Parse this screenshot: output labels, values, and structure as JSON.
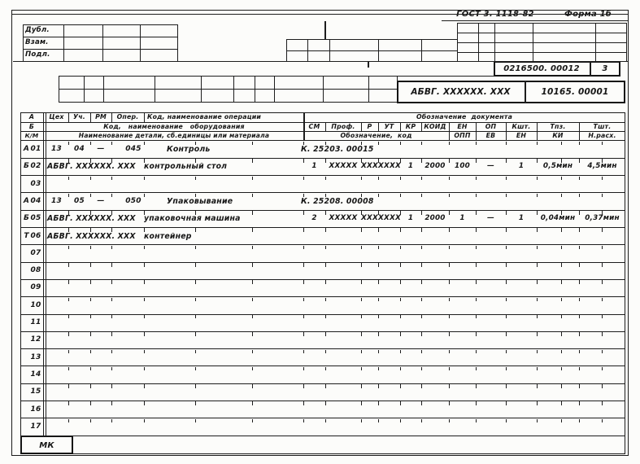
{
  "title": {
    "gost": "ГОСТ 3. 1118-82",
    "forma": "Форма 1б"
  },
  "stamp": {
    "left_rows": [
      "Дубл.",
      "Взам.",
      "Подл."
    ],
    "doc_number": "0216500. 00012",
    "sheet": "3",
    "designation": "АБВГ. XXXXXX. XXX",
    "doc_code": "10165. 00001"
  },
  "table_header": {
    "row_a_label": "А",
    "row_b_label": "Б",
    "row_km_label": "К/М",
    "a_cols": [
      "Цех",
      "Уч.",
      "РМ",
      "Опер.",
      "Код, наименование операции"
    ],
    "a_right": "Обозначение  документа",
    "b_left": "Код,   наименование   оборудования",
    "b_cols": [
      "СМ",
      "Проф.",
      "Р",
      "УТ",
      "КР",
      "КОИД",
      "ЕН",
      "ОП",
      "Кшт.",
      "Тпз.",
      "Тшт."
    ],
    "km_left": "Наименование детали, сб.единицы или материала",
    "km_designation": "Обозначение,  код",
    "km_cols": [
      "ОПП",
      "ЕВ",
      "ЕН",
      "КИ",
      "Н.расх."
    ]
  },
  "rows": [
    {
      "letter": "А",
      "num": "01",
      "op": {
        "ceh": "13",
        "uch": "04",
        "rm": "—",
        "oper": "045",
        "name": "Контроль"
      },
      "doc": "К. 25203. 00015"
    },
    {
      "letter": "Б",
      "num": "02",
      "text": "АБВГ. XXXXXX. XXX   контрольный стол",
      "values": [
        "1",
        "XXXXX",
        "XXX",
        "XXXX",
        "1",
        "2000",
        "100",
        "—",
        "1",
        "0,5мин",
        "4,5мин"
      ]
    },
    {
      "letter": "",
      "num": "03"
    },
    {
      "letter": "А",
      "num": "04",
      "op": {
        "ceh": "13",
        "uch": "05",
        "rm": "—",
        "oper": "050",
        "name": "Упаковывание"
      },
      "doc": "К. 25208. 00008"
    },
    {
      "letter": "Б",
      "num": "05",
      "text": "АБВГ. XXXXXX. XXX   упаковочная машина",
      "values": [
        "2",
        "XXXXX",
        "XXX",
        "XXXX",
        "1",
        "2000",
        "1",
        "—",
        "1",
        "0,04мин",
        "0,37мин"
      ]
    },
    {
      "letter": "Т",
      "num": "06",
      "text": "АБВГ. XXXXXX. XXX   контейнер"
    },
    {
      "letter": "",
      "num": "07"
    },
    {
      "letter": "",
      "num": "08"
    },
    {
      "letter": "",
      "num": "09"
    },
    {
      "letter": "",
      "num": "10"
    },
    {
      "letter": "",
      "num": "11"
    },
    {
      "letter": "",
      "num": "12"
    },
    {
      "letter": "",
      "num": "13"
    },
    {
      "letter": "",
      "num": "14"
    },
    {
      "letter": "",
      "num": "15"
    },
    {
      "letter": "",
      "num": "16"
    },
    {
      "letter": "",
      "num": "17"
    }
  ],
  "footer": {
    "mk": "МК"
  }
}
